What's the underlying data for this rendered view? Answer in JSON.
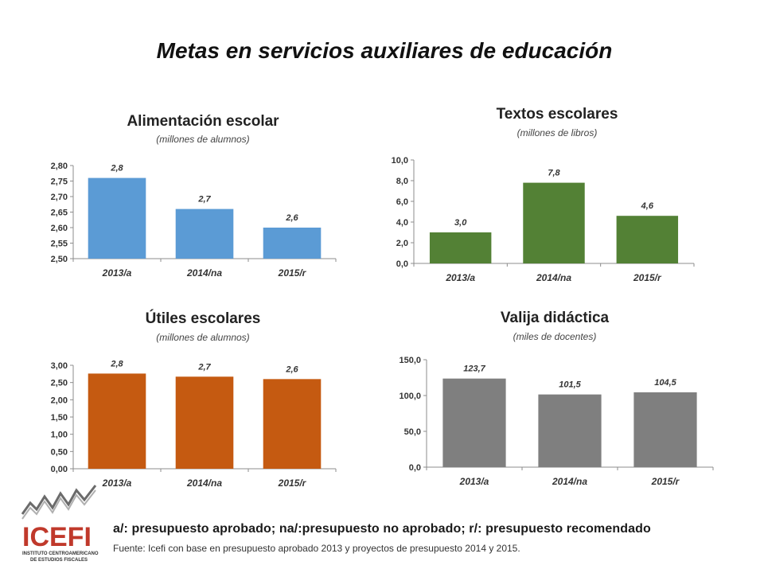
{
  "page": {
    "title": "Metas en servicios auxiliares de educación",
    "notes": "a/: presupuesto aprobado; na/:presupuesto no aprobado; r/: presupuesto recomendado",
    "source": "Fuente: Icefi con base en presupuesto aprobado 2013 y proyectos de presupuesto 2014 y 2015.",
    "logo": {
      "text": "ICEFI",
      "subtitle_line1": "INSTITUTO CENTROAMERICANO",
      "subtitle_line2": "DE ESTUDIOS FISCALES"
    }
  },
  "chart_data": [
    {
      "id": "alimentacion",
      "type": "bar",
      "title": "Alimentación escolar",
      "subtitle": "(millones de alumnos)",
      "categories": [
        "2013/a",
        "2014/na",
        "2015/r"
      ],
      "values": [
        2.76,
        2.66,
        2.6
      ],
      "data_labels": [
        "2,8",
        "2,7",
        "2,6"
      ],
      "ylim": [
        2.5,
        2.8
      ],
      "yticks": [
        2.5,
        2.55,
        2.6,
        2.65,
        2.7,
        2.75,
        2.8
      ],
      "ytick_labels": [
        "2,50",
        "2,55",
        "2,60",
        "2,65",
        "2,70",
        "2,75",
        "2,80"
      ],
      "color": "#5b9bd5",
      "grid": false
    },
    {
      "id": "textos",
      "type": "bar",
      "title": "Textos escolares",
      "subtitle": "(millones de libros)",
      "categories": [
        "2013/a",
        "2014/na",
        "2015/r"
      ],
      "values": [
        3.0,
        7.8,
        4.6
      ],
      "data_labels": [
        "3,0",
        "7,8",
        "4,6"
      ],
      "ylim": [
        0,
        10
      ],
      "yticks": [
        0,
        2,
        4,
        6,
        8,
        10
      ],
      "ytick_labels": [
        "0,0",
        "2,0",
        "4,0",
        "6,0",
        "8,0",
        "10,0"
      ],
      "color": "#538135",
      "grid": false
    },
    {
      "id": "utiles",
      "type": "bar",
      "title": "Útiles escolares",
      "subtitle": "(millones de alumnos)",
      "categories": [
        "2013/a",
        "2014/na",
        "2015/r"
      ],
      "values": [
        2.76,
        2.67,
        2.6
      ],
      "data_labels": [
        "2,8",
        "2,7",
        "2,6"
      ],
      "ylim": [
        0,
        3
      ],
      "yticks": [
        0,
        0.5,
        1,
        1.5,
        2,
        2.5,
        3
      ],
      "ytick_labels": [
        "0,00",
        "0,50",
        "1,00",
        "1,50",
        "2,00",
        "2,50",
        "3,00"
      ],
      "color": "#c55a11",
      "grid": false
    },
    {
      "id": "valija",
      "type": "bar",
      "title": "Valija didáctica",
      "subtitle": "(miles de docentes)",
      "categories": [
        "2013/a",
        "2014/na",
        "2015/r"
      ],
      "values": [
        123.7,
        101.5,
        104.5
      ],
      "data_labels": [
        "123,7",
        "101,5",
        "104,5"
      ],
      "ylim": [
        0,
        150
      ],
      "yticks": [
        0,
        50,
        100,
        150
      ],
      "ytick_labels": [
        "0,0",
        "50,0",
        "100,0",
        "150,0"
      ],
      "color": "#7f7f7f",
      "grid": false
    }
  ]
}
